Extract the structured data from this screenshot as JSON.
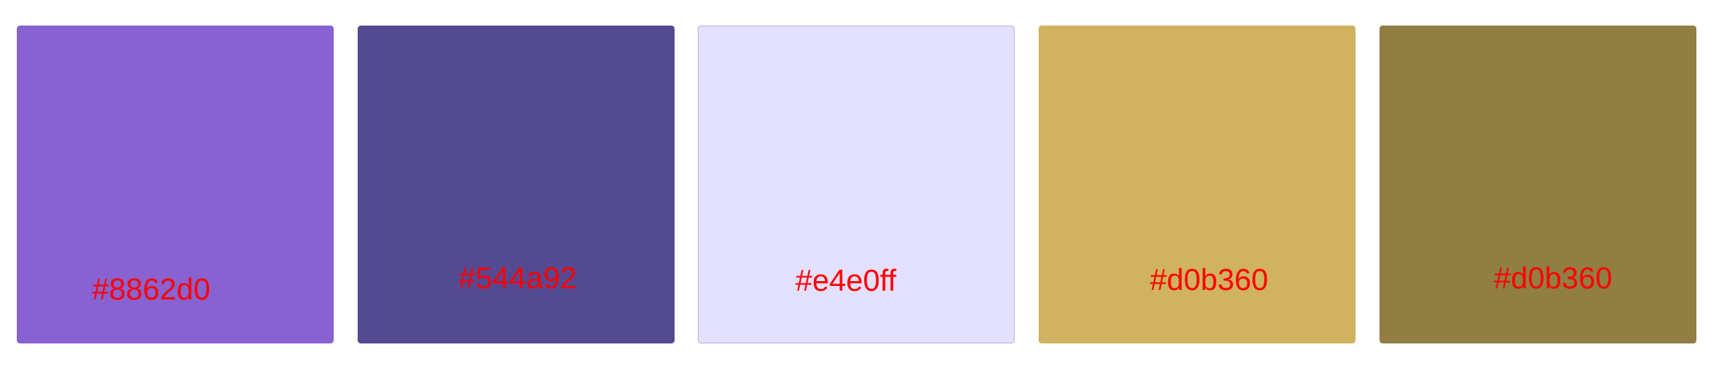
{
  "swatches": [
    {
      "color": "#8862d0",
      "label": "#8862d0"
    },
    {
      "color": "#544a92",
      "label": "#544a92"
    },
    {
      "color": "#e4e0ff",
      "label": "#e4e0ff"
    },
    {
      "color": "#d0b360",
      "label": "#d0b360"
    },
    {
      "color": "#917e43",
      "label": "#d0b360"
    }
  ],
  "label_color": "#ff0000"
}
